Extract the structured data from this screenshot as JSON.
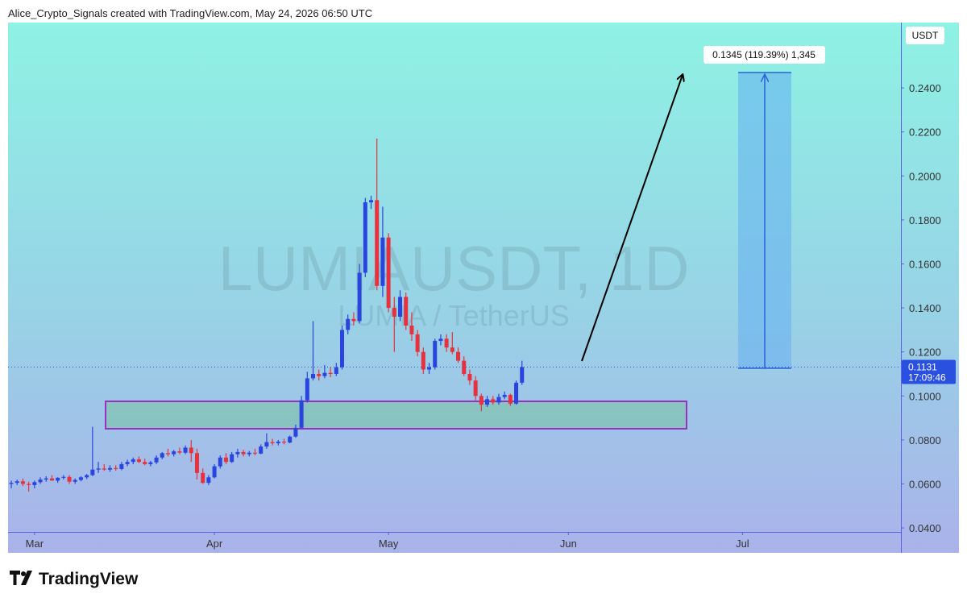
{
  "header": "Alice_Crypto_Signals created with TradingView.com, May 24, 2026 06:50 UTC",
  "footer_logo": "TradingView",
  "chart_data": {
    "type": "candlestick",
    "watermark_title": "LUMIAUSDT, 1D",
    "watermark_subtitle": "LUMIA / TetherUS",
    "y_axis_label": "USDT",
    "measure_label": "0.1345 (119.39%) 1,345",
    "up_color": "#2a44e0",
    "down_color": "#e8313f",
    "open": [
      0.06,
      0.0605,
      0.0612,
      0.06,
      0.0595,
      0.0608,
      0.062,
      0.0625,
      0.0615,
      0.0628,
      0.0632,
      0.061,
      0.0618,
      0.063,
      0.064,
      0.0665,
      0.067,
      0.0665,
      0.0672,
      0.0668,
      0.069,
      0.07,
      0.0712,
      0.07,
      0.069,
      0.0698,
      0.072,
      0.074,
      0.0735,
      0.0748,
      0.0742,
      0.0765,
      0.074,
      0.065,
      0.0605,
      0.063,
      0.068,
      0.072,
      0.07,
      0.0735,
      0.0745,
      0.0735,
      0.0742,
      0.0738,
      0.077,
      0.079,
      0.0785,
      0.0792,
      0.0788,
      0.0815,
      0.0855,
      0.098,
      0.108,
      0.11,
      0.109,
      0.1105,
      0.11,
      0.113,
      0.13,
      0.135,
      0.134,
      0.156,
      0.188,
      0.189,
      0.15,
      0.172,
      0.14,
      0.136,
      0.145,
      0.132,
      0.128,
      0.12,
      0.112,
      0.113,
      0.125,
      0.126,
      0.122,
      0.12,
      0.116,
      0.11,
      0.107,
      0.1,
      0.096,
      0.0985,
      0.097,
      0.0995,
      0.1005,
      0.0965,
      0.106
    ],
    "high": [
      0.0615,
      0.062,
      0.0625,
      0.061,
      0.0615,
      0.063,
      0.0635,
      0.064,
      0.063,
      0.064,
      0.064,
      0.0625,
      0.0635,
      0.0645,
      0.086,
      0.07,
      0.069,
      0.0685,
      0.0685,
      0.07,
      0.071,
      0.072,
      0.0725,
      0.0715,
      0.0705,
      0.073,
      0.0745,
      0.076,
      0.0755,
      0.0765,
      0.0775,
      0.08,
      0.076,
      0.067,
      0.064,
      0.069,
      0.073,
      0.074,
      0.0745,
      0.076,
      0.0755,
      0.075,
      0.076,
      0.078,
      0.083,
      0.0805,
      0.08,
      0.0805,
      0.082,
      0.087,
      0.1,
      0.111,
      0.134,
      0.112,
      0.114,
      0.113,
      0.115,
      0.132,
      0.137,
      0.138,
      0.16,
      0.19,
      0.191,
      0.217,
      0.186,
      0.174,
      0.145,
      0.148,
      0.147,
      0.138,
      0.13,
      0.122,
      0.115,
      0.126,
      0.128,
      0.128,
      0.129,
      0.122,
      0.118,
      0.112,
      0.109,
      0.101,
      0.1,
      0.1,
      0.101,
      0.102,
      0.101,
      0.107,
      0.116
    ],
    "low": [
      0.058,
      0.0595,
      0.059,
      0.0565,
      0.058,
      0.06,
      0.061,
      0.0615,
      0.0605,
      0.062,
      0.06,
      0.06,
      0.0612,
      0.0622,
      0.0635,
      0.065,
      0.066,
      0.0655,
      0.066,
      0.0662,
      0.068,
      0.069,
      0.0695,
      0.0685,
      0.068,
      0.069,
      0.0712,
      0.0725,
      0.0725,
      0.0735,
      0.0735,
      0.07,
      0.062,
      0.06,
      0.0595,
      0.0625,
      0.067,
      0.069,
      0.0695,
      0.072,
      0.0725,
      0.0725,
      0.073,
      0.0735,
      0.076,
      0.0775,
      0.0775,
      0.078,
      0.0785,
      0.081,
      0.085,
      0.097,
      0.107,
      0.107,
      0.108,
      0.1085,
      0.109,
      0.112,
      0.128,
      0.132,
      0.133,
      0.154,
      0.185,
      0.148,
      0.145,
      0.138,
      0.12,
      0.134,
      0.13,
      0.125,
      0.118,
      0.11,
      0.11,
      0.112,
      0.123,
      0.12,
      0.119,
      0.115,
      0.109,
      0.105,
      0.098,
      0.093,
      0.095,
      0.096,
      0.096,
      0.0985,
      0.0955,
      0.096,
      0.105
    ],
    "close": [
      0.0605,
      0.0612,
      0.06,
      0.0595,
      0.0608,
      0.062,
      0.0625,
      0.0615,
      0.0628,
      0.0632,
      0.061,
      0.0618,
      0.063,
      0.064,
      0.0665,
      0.067,
      0.0665,
      0.0672,
      0.0668,
      0.069,
      0.07,
      0.0712,
      0.07,
      0.069,
      0.0698,
      0.072,
      0.074,
      0.0735,
      0.0748,
      0.0742,
      0.0765,
      0.074,
      0.065,
      0.0605,
      0.063,
      0.068,
      0.072,
      0.07,
      0.0735,
      0.0745,
      0.0735,
      0.0742,
      0.0738,
      0.077,
      0.079,
      0.0785,
      0.0792,
      0.0788,
      0.0815,
      0.0855,
      0.098,
      0.108,
      0.11,
      0.109,
      0.1105,
      0.11,
      0.113,
      0.13,
      0.135,
      0.134,
      0.156,
      0.188,
      0.189,
      0.15,
      0.172,
      0.14,
      0.136,
      0.145,
      0.132,
      0.128,
      0.12,
      0.112,
      0.113,
      0.125,
      0.126,
      0.122,
      0.12,
      0.116,
      0.11,
      0.107,
      0.1,
      0.096,
      0.0985,
      0.097,
      0.0995,
      0.1005,
      0.0965,
      0.106,
      0.1131
    ],
    "last_price": 0.1131,
    "countdown": "17:09:46",
    "xlim": [
      -0.56,
      153.3
    ],
    "xticks": [
      {
        "value": 4,
        "label": "Mar"
      },
      {
        "value": 35,
        "label": "Apr"
      },
      {
        "value": 65,
        "label": "May"
      },
      {
        "value": 96,
        "label": "Jun"
      },
      {
        "value": 126,
        "label": "Jul"
      }
    ],
    "ylim": [
      0.0382,
      0.2697
    ],
    "yticks": [
      {
        "value": 0.04,
        "label": "0.0400"
      },
      {
        "value": 0.06,
        "label": "0.0600"
      },
      {
        "value": 0.08,
        "label": "0.0800"
      },
      {
        "value": 0.1,
        "label": "0.1000"
      },
      {
        "value": 0.12,
        "label": "0.1200"
      },
      {
        "value": 0.14,
        "label": "0.1400"
      },
      {
        "value": 0.16,
        "label": "0.1600"
      },
      {
        "value": 0.18,
        "label": "0.1800"
      },
      {
        "value": 0.2,
        "label": "0.2000"
      },
      {
        "value": 0.22,
        "label": "0.2200"
      },
      {
        "value": 0.24,
        "label": "0.2400"
      }
    ]
  }
}
